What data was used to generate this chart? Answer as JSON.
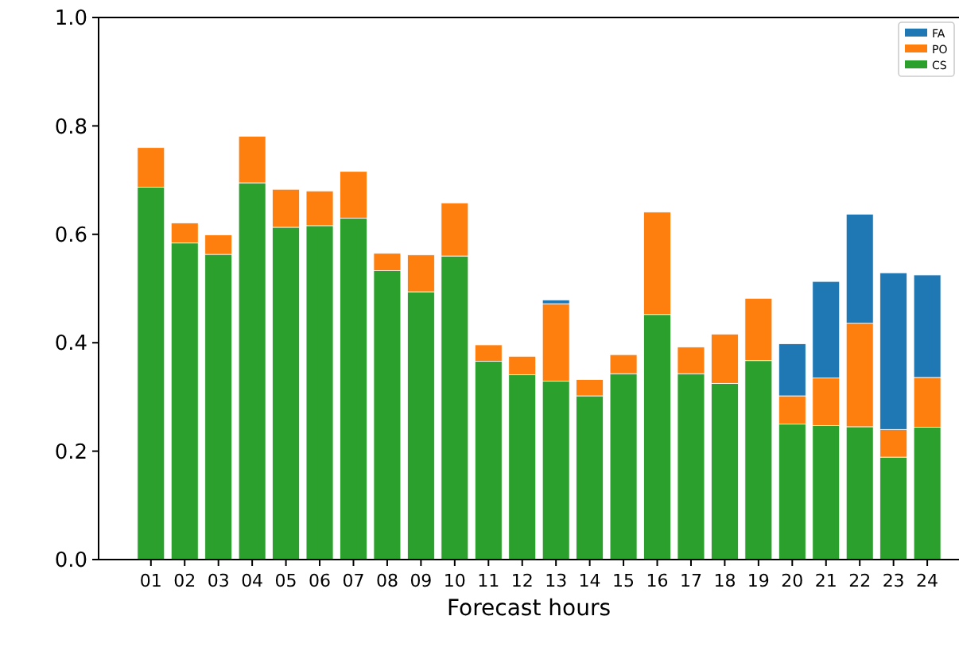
{
  "chart_data": {
    "type": "bar",
    "stacked": true,
    "xlabel": "Forecast hours",
    "categories": [
      "01",
      "02",
      "03",
      "04",
      "05",
      "06",
      "07",
      "08",
      "09",
      "10",
      "11",
      "12",
      "13",
      "14",
      "15",
      "16",
      "17",
      "18",
      "19",
      "20",
      "21",
      "22",
      "23",
      "24"
    ],
    "series": [
      {
        "name": "CS",
        "color": "#2ca02c",
        "values": [
          0.687,
          0.584,
          0.563,
          0.695,
          0.613,
          0.616,
          0.63,
          0.533,
          0.494,
          0.56,
          0.366,
          0.341,
          0.329,
          0.302,
          0.343,
          0.452,
          0.343,
          0.325,
          0.367,
          0.25,
          0.247,
          0.245,
          0.189,
          0.244
        ]
      },
      {
        "name": "PO",
        "color": "#ff7f0e",
        "values": [
          0.073,
          0.037,
          0.036,
          0.086,
          0.07,
          0.064,
          0.086,
          0.032,
          0.068,
          0.098,
          0.03,
          0.034,
          0.143,
          0.03,
          0.035,
          0.189,
          0.049,
          0.091,
          0.115,
          0.052,
          0.088,
          0.191,
          0.051,
          0.092
        ]
      },
      {
        "name": "FA",
        "color": "#1f77b4",
        "values": [
          0,
          0,
          0,
          0,
          0,
          0,
          0,
          0,
          0,
          0,
          0,
          0,
          0.007,
          0,
          0,
          0,
          0,
          0,
          0,
          0.096,
          0.178,
          0.201,
          0.289,
          0.189
        ]
      }
    ],
    "ylim": [
      0,
      1.0
    ],
    "yticks": [
      {
        "value": 0,
        "label": "0.0"
      },
      {
        "value": 0.2,
        "label": "0.2"
      },
      {
        "value": 0.4,
        "label": "0.4"
      },
      {
        "value": 0.6,
        "label": "0.6"
      },
      {
        "value": 0.8,
        "label": "0.8"
      },
      {
        "value": 1.0,
        "label": "1.0"
      }
    ],
    "legend": "top right",
    "grid": false
  }
}
